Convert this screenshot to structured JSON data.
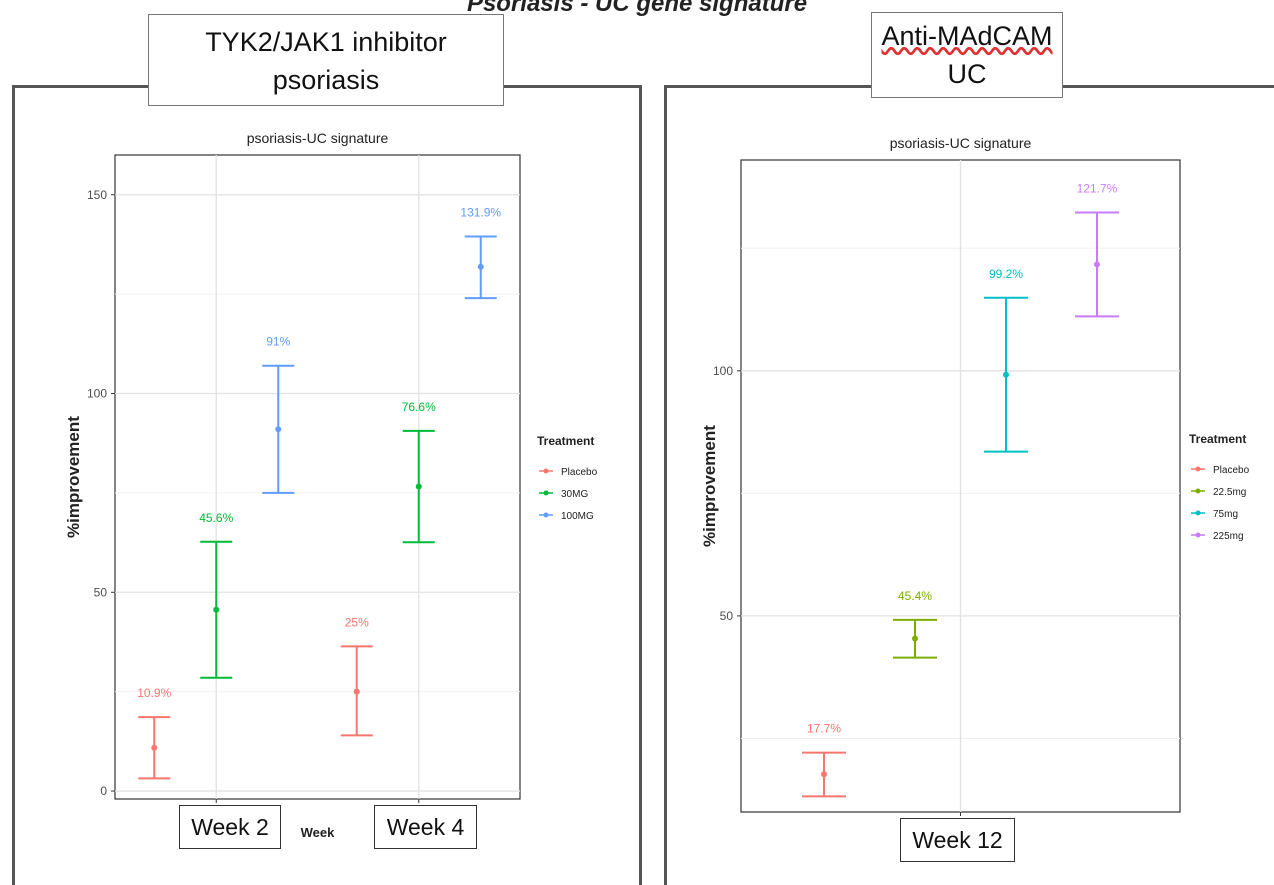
{
  "figure_title": "Psoriasis - UC gene signature",
  "left_panel": {
    "tag": [
      "TYK2/JAK1 inhibitor",
      "psoriasis"
    ],
    "week_labels": [
      "Week 2",
      "Week 4"
    ]
  },
  "right_panel": {
    "tag": [
      "Anti-MAdCAM",
      "UC"
    ],
    "week_labels": [
      "Week 12"
    ]
  },
  "chart_data": [
    {
      "type": "scatter",
      "title": "psoriasis-UC signature",
      "xlabel": "Week",
      "ylabel": "%improvement",
      "legend_title": "Treatment",
      "legend_position": "right",
      "grid": true,
      "ylim": [
        -2,
        160
      ],
      "yticks": [
        0,
        50,
        100,
        150
      ],
      "categories": [
        "Week 2",
        "Week 4"
      ],
      "series": [
        {
          "name": "Placebo",
          "color": "#F8766D",
          "points": [
            {
              "x": "Week 2",
              "y": 10.9,
              "lo": 3.2,
              "hi": 18.6,
              "label": "10.9%"
            },
            {
              "x": "Week 4",
              "y": 25,
              "lo": 14,
              "hi": 36.4,
              "label": "25%"
            }
          ]
        },
        {
          "name": "30MG",
          "color": "#00BA38",
          "points": [
            {
              "x": "Week 2",
              "y": 45.6,
              "lo": 28.5,
              "hi": 62.7,
              "label": "45.6%"
            },
            {
              "x": "Week 4",
              "y": 76.6,
              "lo": 62.6,
              "hi": 90.6,
              "label": "76.6%"
            }
          ]
        },
        {
          "name": "100MG",
          "color": "#619CFF",
          "points": [
            {
              "x": "Week 2",
              "y": 91,
              "lo": 75,
              "hi": 107,
              "label": "91%"
            },
            {
              "x": "Week 4",
              "y": 131.9,
              "lo": 124,
              "hi": 139.5,
              "label": "131.9%"
            }
          ]
        }
      ]
    },
    {
      "type": "scatter",
      "title": "psoriasis-UC signature",
      "xlabel": "",
      "ylabel": "%improvement",
      "legend_title": "Treatment",
      "legend_position": "right",
      "grid": true,
      "ylim": [
        10,
        143
      ],
      "yticks": [
        50,
        100
      ],
      "categories": [
        "Week 12"
      ],
      "series": [
        {
          "name": "Placebo",
          "color": "#F8766D",
          "points": [
            {
              "x": "Week 12",
              "y": 17.7,
              "lo": 13.2,
              "hi": 22.1,
              "label": "17.7%"
            }
          ]
        },
        {
          "name": "22.5mg",
          "color": "#7CAE00",
          "points": [
            {
              "x": "Week 12",
              "y": 45.4,
              "lo": 41.5,
              "hi": 49.2,
              "label": "45.4%"
            }
          ]
        },
        {
          "name": "75mg",
          "color": "#00BFC4",
          "points": [
            {
              "x": "Week 12",
              "y": 99.2,
              "lo": 83.5,
              "hi": 114.9,
              "label": "99.2%"
            }
          ]
        },
        {
          "name": "225mg",
          "color": "#C77CFF",
          "points": [
            {
              "x": "Week 12",
              "y": 121.7,
              "lo": 111.1,
              "hi": 132.3,
              "label": "121.7%"
            }
          ]
        }
      ]
    }
  ]
}
